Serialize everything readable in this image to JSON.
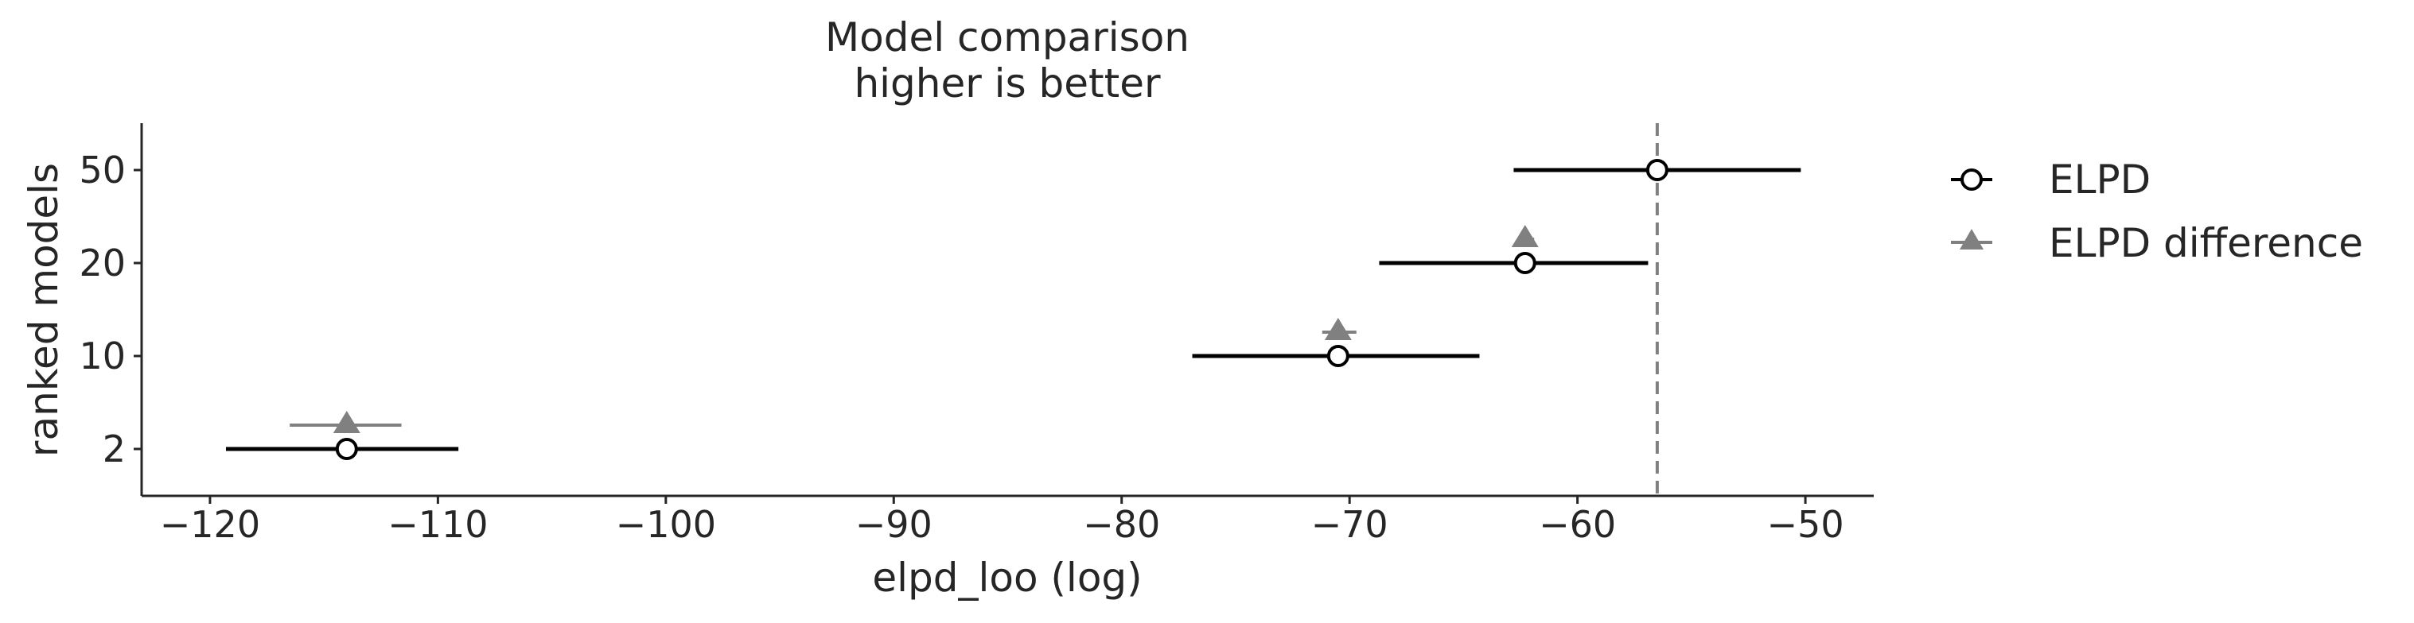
{
  "chart_data": {
    "type": "scatter",
    "title": "Model comparison",
    "subtitle": "higher is better",
    "xlabel": "elpd_loo (log)",
    "ylabel": "ranked models",
    "xlim": [
      -123.0,
      -47.0
    ],
    "x_ticks": [
      -120,
      -110,
      -100,
      -90,
      -80,
      -70,
      -60,
      -50
    ],
    "x_tick_labels": [
      "−120",
      "−110",
      "−100",
      "−90",
      "−80",
      "−70",
      "−60",
      "−50"
    ],
    "categories": [
      "50",
      "20",
      "10",
      "2"
    ],
    "reference_line": {
      "x": -56.5,
      "style": "dashed",
      "color": "#808080"
    },
    "series": [
      {
        "name": "ELPD",
        "marker": "circle-open",
        "color": "#000000",
        "points": [
          {
            "model": "50",
            "x": -56.5,
            "low": -62.8,
            "high": -50.2
          },
          {
            "model": "20",
            "x": -62.3,
            "low": -68.7,
            "high": -56.9
          },
          {
            "model": "10",
            "x": -70.5,
            "low": -76.9,
            "high": -64.3
          },
          {
            "model": "2",
            "x": -114.0,
            "low": -119.3,
            "high": -109.1
          }
        ]
      },
      {
        "name": "ELPD difference",
        "marker": "triangle",
        "color": "#808080",
        "points": [
          {
            "model": "20",
            "x": -62.3,
            "low": -62.6,
            "high": -61.9
          },
          {
            "model": "10",
            "x": -70.5,
            "low": -71.2,
            "high": -69.7
          },
          {
            "model": "2",
            "x": -114.0,
            "low": -116.5,
            "high": -111.6
          }
        ]
      }
    ],
    "grid": false,
    "legend_position": "right"
  }
}
